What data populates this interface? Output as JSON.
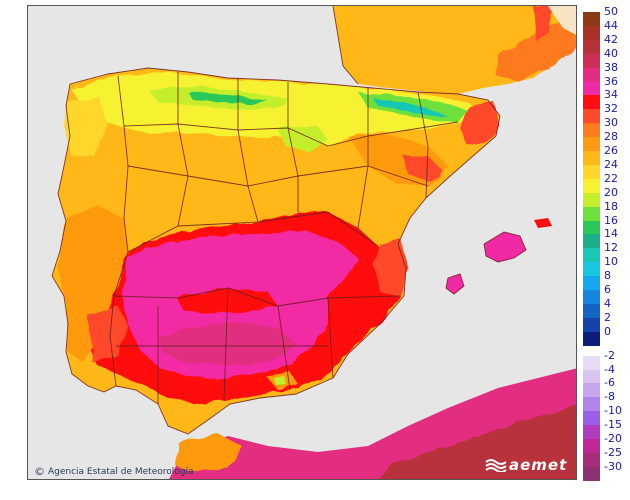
{
  "map": {
    "title": "",
    "colors": {
      "sea": "#e6e6e6",
      "border": "#6b1a1a",
      "frame": "#555555"
    }
  },
  "legend": {
    "positive": [
      {
        "label": "50",
        "color": "#8c3a12"
      },
      {
        "label": "44",
        "color": "#a8322a"
      },
      {
        "label": "42",
        "color": "#b8323a"
      },
      {
        "label": "40",
        "color": "#cc2f55"
      },
      {
        "label": "38",
        "color": "#e22d80"
      },
      {
        "label": "36",
        "color": "#f229a4"
      },
      {
        "label": "34",
        "color": "#ff0d10"
      },
      {
        "label": "32",
        "color": "#ff4a2a"
      },
      {
        "label": "30",
        "color": "#ff7a1a"
      },
      {
        "label": "28",
        "color": "#ff9a10"
      },
      {
        "label": "26",
        "color": "#ffb818"
      },
      {
        "label": "24",
        "color": "#ffd62a"
      },
      {
        "label": "22",
        "color": "#f6f230"
      },
      {
        "label": "20",
        "color": "#c4ee2a"
      },
      {
        "label": "18",
        "color": "#6ee03a"
      },
      {
        "label": "16",
        "color": "#2ac85a"
      },
      {
        "label": "14",
        "color": "#1ab08a"
      },
      {
        "label": "12",
        "color": "#18c8b4"
      },
      {
        "label": "10",
        "color": "#18c8e0"
      },
      {
        "label": "8",
        "color": "#14a8f0"
      },
      {
        "label": "6",
        "color": "#1486e0"
      },
      {
        "label": "4",
        "color": "#1464c8"
      },
      {
        "label": "2",
        "color": "#1442a8"
      },
      {
        "label": "0",
        "color": "#0c1e7a"
      }
    ],
    "negative": [
      {
        "label": "-2",
        "color": "#e8dcf4"
      },
      {
        "label": "-4",
        "color": "#d8c4ee"
      },
      {
        "label": "-6",
        "color": "#c6a6ec"
      },
      {
        "label": "-8",
        "color": "#b084ea"
      },
      {
        "label": "-10",
        "color": "#9a5ee8"
      },
      {
        "label": "-15",
        "color": "#b03cc0"
      },
      {
        "label": "-20",
        "color": "#c02896"
      },
      {
        "label": "-25",
        "color": "#a82c7a"
      },
      {
        "label": "-30",
        "color": "#8c3270"
      }
    ]
  },
  "credit": {
    "symbol": "©",
    "text": "Agencia Estatal de Meteorología"
  },
  "logo": {
    "text": "aemet"
  }
}
